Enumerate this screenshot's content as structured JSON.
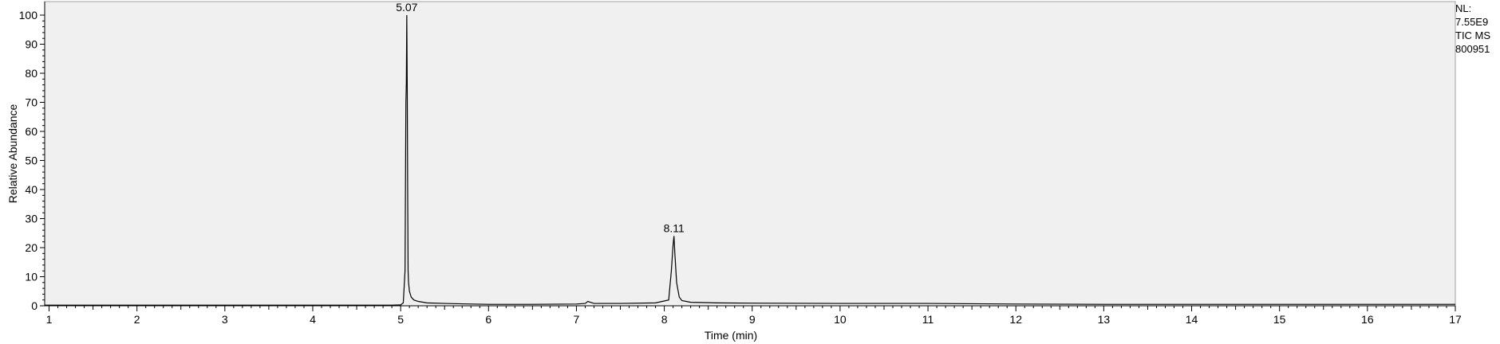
{
  "chart_data": {
    "type": "line",
    "title": "",
    "xlabel": "Time (min)",
    "ylabel": "Relative Abundance",
    "xlim": [
      0.95,
      17.0
    ],
    "ylim": [
      0,
      100
    ],
    "x_ticks": [
      1,
      2,
      3,
      4,
      5,
      6,
      7,
      8,
      9,
      10,
      11,
      12,
      13,
      14,
      15,
      16,
      17
    ],
    "y_ticks": [
      0,
      10,
      20,
      30,
      40,
      50,
      60,
      70,
      80,
      90,
      100
    ],
    "grid": false,
    "background_color": "#f0f0f0",
    "line_color": "#000000",
    "series": [
      {
        "x": [
          0.95,
          2.0,
          3.0,
          4.0,
          4.9,
          5.0,
          5.03,
          5.05,
          5.06,
          5.065,
          5.07,
          5.075,
          5.08,
          5.085,
          5.09,
          5.1,
          5.12,
          5.15,
          5.2,
          5.3,
          5.5,
          5.8,
          6.0,
          6.5,
          7.0,
          7.1,
          7.13,
          7.2,
          7.5,
          7.9,
          8.05,
          8.08,
          8.1,
          8.11,
          8.12,
          8.14,
          8.17,
          8.2,
          8.3,
          8.6,
          9.0,
          10.0,
          10.5,
          11.0,
          12.0,
          13.0,
          14.0,
          15.0,
          16.0,
          17.0
        ],
        "y": [
          0.2,
          0.2,
          0.2,
          0.2,
          0.2,
          0.3,
          1.0,
          12,
          70,
          77,
          100,
          77,
          40,
          12,
          8,
          5,
          3,
          2,
          1.5,
          1.0,
          0.8,
          0.6,
          0.5,
          0.5,
          0.6,
          0.8,
          1.5,
          0.8,
          0.8,
          1.0,
          2,
          12,
          21,
          24,
          18,
          8,
          3,
          1.8,
          1.2,
          1.0,
          0.9,
          0.8,
          0.8,
          0.8,
          0.6,
          0.5,
          0.5,
          0.5,
          0.5,
          0.5
        ]
      }
    ],
    "annotations": [
      {
        "x": 5.07,
        "y": 100,
        "text": "5.07"
      },
      {
        "x": 8.11,
        "y": 24,
        "text": "8.11"
      }
    ]
  },
  "info": {
    "nl_label": "NL:",
    "nl_value": "7.55E9",
    "trace": "TIC  MS",
    "sample": "800951"
  }
}
